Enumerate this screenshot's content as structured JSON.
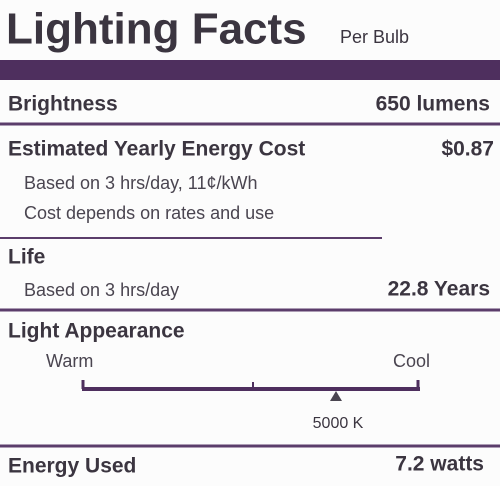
{
  "header": {
    "title": "Lighting Facts",
    "subtitle": "Per Bulb"
  },
  "brightness": {
    "label": "Brightness",
    "value": "650 lumens"
  },
  "cost": {
    "label": "Estimated Yearly Energy Cost",
    "value": "$0.87",
    "notes": [
      "Based on 3 hrs/day, 11¢/kWh",
      "Cost depends on rates and use"
    ]
  },
  "life": {
    "label": "Life",
    "note": "Based on 3 hrs/day",
    "value": "22.8 Years"
  },
  "appearance": {
    "label": "Light Appearance",
    "warm": "Warm",
    "cool": "Cool",
    "value": "5000 K"
  },
  "energy": {
    "label": "Energy Used",
    "value": "7.2 watts"
  }
}
